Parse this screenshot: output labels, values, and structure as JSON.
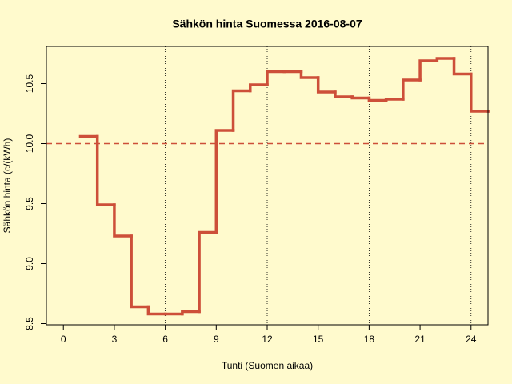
{
  "chart_data": {
    "type": "step",
    "title": "Sähkön hinta Suomessa 2016-08-07",
    "x_label": "Tunti (Suomen aikaa)",
    "y_label": "Sähkön hinta (c/(kWh)",
    "x": [
      1,
      2,
      3,
      4,
      5,
      6,
      7,
      8,
      9,
      10,
      11,
      12,
      13,
      14,
      15,
      16,
      17,
      18,
      19,
      20,
      21,
      22,
      23,
      24,
      25
    ],
    "values": [
      10.06,
      9.49,
      9.23,
      8.64,
      8.58,
      8.58,
      8.6,
      9.26,
      10.11,
      10.44,
      10.49,
      10.6,
      10.6,
      10.55,
      10.43,
      10.39,
      10.38,
      10.36,
      10.37,
      10.53,
      10.69,
      10.71,
      10.58,
      10.27,
      10.27
    ],
    "color": "#cd4f39",
    "xlim": [
      -1,
      25
    ],
    "ylim": [
      8.49,
      10.81
    ],
    "xticks": [
      0,
      3,
      6,
      9,
      12,
      15,
      18,
      21,
      24
    ],
    "yticks": [
      8.5,
      {
        "value": 9,
        "label": "9.0"
      },
      9.5,
      {
        "value": 10,
        "label": "10.0"
      },
      10.5
    ],
    "vlines": [
      6,
      12,
      18,
      24
    ],
    "hline": 10,
    "hline_color": "#cd4f39"
  }
}
